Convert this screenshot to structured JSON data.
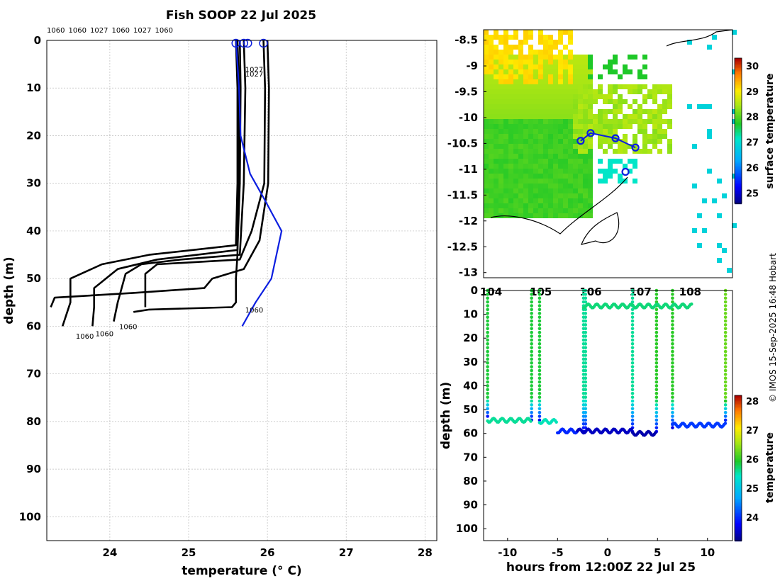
{
  "title": "Fish SOOP 22 Jul 2025",
  "credit": "© IMOS 15-Sep-2025 16:48 Hobart",
  "colors": {
    "mean_profile": "#0b1ee0",
    "profiles": "#000000",
    "grid": "#bcbcbc"
  },
  "chart_data": [
    {
      "type": "line",
      "name": "temperature-depth-profiles",
      "xlabel": "temperature (° C)",
      "ylabel": "depth (m)",
      "xlim": [
        23.2,
        28.15
      ],
      "ylim": [
        0,
        105
      ],
      "y_inverted": true,
      "xticks": [
        24,
        25,
        26,
        27,
        28
      ],
      "yticks": [
        0,
        10,
        20,
        30,
        40,
        50,
        60,
        70,
        80,
        90,
        100
      ],
      "top_labels": [
        "1060",
        "1060",
        "1027",
        "1060",
        "1027",
        "1060"
      ],
      "profile_labels": [
        {
          "text": "1027",
          "t": 25.7,
          "d": 6
        },
        {
          "text": "1027",
          "t": 25.7,
          "d": 7
        },
        {
          "text": "1060",
          "t": 25.7,
          "d": 56.5
        },
        {
          "text": "1060",
          "t": 24.1,
          "d": 60
        },
        {
          "text": "1060",
          "t": 23.8,
          "d": 61.5
        },
        {
          "text": "1060",
          "t": 23.55,
          "d": 62
        }
      ],
      "surface_markers": [
        25.6,
        25.7,
        25.75,
        25.95
      ],
      "series": [
        {
          "name": "profile-1",
          "color": "#000000",
          "points": [
            [
              25.6,
              0
            ],
            [
              25.62,
              10
            ],
            [
              25.62,
              30
            ],
            [
              25.6,
              43
            ],
            [
              24.5,
              45
            ],
            [
              23.9,
              47
            ],
            [
              23.5,
              50
            ],
            [
              23.5,
              55
            ],
            [
              23.4,
              60
            ]
          ]
        },
        {
          "name": "profile-2",
          "color": "#000000",
          "points": [
            [
              25.65,
              0
            ],
            [
              25.66,
              10
            ],
            [
              25.65,
              30
            ],
            [
              25.62,
              44
            ],
            [
              24.6,
              46
            ],
            [
              24.1,
              48
            ],
            [
              23.8,
              52
            ],
            [
              23.8,
              56
            ],
            [
              23.78,
              60
            ]
          ]
        },
        {
          "name": "profile-3",
          "color": "#000000",
          "points": [
            [
              25.7,
              0
            ],
            [
              25.72,
              10
            ],
            [
              25.7,
              30
            ],
            [
              25.65,
              45
            ],
            [
              24.9,
              46
            ],
            [
              24.4,
              47
            ],
            [
              24.2,
              49
            ],
            [
              24.1,
              55
            ],
            [
              24.05,
              59
            ]
          ]
        },
        {
          "name": "profile-4",
          "color": "#000000",
          "points": [
            [
              25.95,
              0
            ],
            [
              25.97,
              10
            ],
            [
              25.96,
              30
            ],
            [
              25.8,
              40
            ],
            [
              25.65,
              46
            ],
            [
              24.6,
              47
            ],
            [
              24.45,
              49
            ],
            [
              24.45,
              56
            ]
          ]
        },
        {
          "name": "profile-5",
          "color": "#000000",
          "points": [
            [
              26.0,
              0
            ],
            [
              26.02,
              10
            ],
            [
              26.01,
              30
            ],
            [
              25.9,
              42
            ],
            [
              25.7,
              48
            ],
            [
              25.3,
              50
            ],
            [
              25.2,
              52
            ],
            [
              24.3,
              53
            ],
            [
              23.3,
              54
            ],
            [
              23.25,
              56
            ]
          ]
        },
        {
          "name": "profile-6",
          "color": "#000000",
          "points": [
            [
              25.62,
              0
            ],
            [
              25.64,
              10
            ],
            [
              25.63,
              30
            ],
            [
              25.62,
              45
            ],
            [
              25.6,
              50
            ],
            [
              25.6,
              55
            ],
            [
              25.55,
              56
            ],
            [
              24.5,
              56.5
            ],
            [
              24.3,
              57
            ]
          ]
        },
        {
          "name": "mean",
          "color": "#0b1ee0",
          "points": [
            [
              25.6,
              0
            ],
            [
              25.62,
              5
            ],
            [
              25.64,
              10
            ],
            [
              25.66,
              20
            ],
            [
              25.78,
              28
            ],
            [
              25.95,
              33
            ],
            [
              26.18,
              40
            ],
            [
              26.05,
              50
            ],
            [
              25.85,
              55
            ],
            [
              25.68,
              60
            ]
          ]
        }
      ]
    },
    {
      "type": "heatmap",
      "name": "surface-temperature-map",
      "colorbar_label": "surface temperature",
      "colorbar_ticks": [
        25,
        26,
        27,
        28,
        29,
        30
      ],
      "colorbar_range": [
        24.6,
        30.3
      ],
      "xticks_label": [
        "104",
        "105",
        "106",
        "107",
        "108"
      ],
      "xlim": [
        103.85,
        108.85
      ],
      "ylim": [
        -13.1,
        -8.3
      ],
      "yticks": [
        "-8.5",
        "-9",
        "-9.5",
        "-10",
        "-10.5",
        "-11",
        "-11.5",
        "-12",
        "-12.5",
        "-13"
      ],
      "track": [
        [
          105.8,
          -10.45
        ],
        [
          106.0,
          -10.3
        ],
        [
          106.5,
          -10.4
        ],
        [
          106.9,
          -10.58
        ]
      ],
      "track_markers": [
        [
          105.8,
          -10.45
        ],
        [
          106.0,
          -10.3
        ],
        [
          106.5,
          -10.4
        ],
        [
          106.9,
          -10.58
        ],
        [
          106.7,
          -11.05
        ]
      ]
    },
    {
      "type": "scatter",
      "name": "depth-time-section",
      "xlabel": "hours from 12:00Z 22 Jul 25",
      "ylabel": "depth (m)",
      "xlim": [
        -12.4,
        12.5
      ],
      "ylim": [
        0,
        105
      ],
      "xticks": [
        -10,
        -5,
        0,
        5,
        10
      ],
      "yticks": [
        0,
        10,
        20,
        30,
        40,
        50,
        60,
        70,
        80,
        90,
        100
      ],
      "colorbar_label": "temperature",
      "colorbar_ticks": [
        24,
        25,
        26,
        27,
        28
      ],
      "colorbar_range": [
        23.2,
        28.2
      ],
      "casts": [
        {
          "t": -12.0,
          "bottom": 54,
          "temp_top": 25.9
        },
        {
          "t": -7.6,
          "bottom": 55,
          "temp_top": 25.9
        },
        {
          "t": -6.8,
          "bottom": 55,
          "temp_top": 25.9
        },
        {
          "t": -2.4,
          "bottom": 60,
          "temp_top": 25.6
        },
        {
          "t": -2.2,
          "bottom": 60,
          "temp_top": 25.6
        },
        {
          "t": 2.5,
          "bottom": 60,
          "temp_top": 25.6
        },
        {
          "t": 4.9,
          "bottom": 60,
          "temp_top": 26.0
        },
        {
          "t": 6.5,
          "bottom": 58,
          "temp_top": 26.0
        },
        {
          "t": 11.8,
          "bottom": 56,
          "temp_top": 26.3
        }
      ],
      "tows": [
        {
          "t0": -12.0,
          "t1": -7.6,
          "depth": 54.5,
          "temp": 25.6
        },
        {
          "t0": -6.8,
          "t1": -5.0,
          "depth": 55,
          "temp": 25.5
        },
        {
          "t0": -5.0,
          "t1": -3.0,
          "depth": 59,
          "temp": 24.0
        },
        {
          "t0": -3.0,
          "t1": 2.5,
          "depth": 59,
          "temp": 23.5
        },
        {
          "t0": 2.5,
          "t1": 4.9,
          "depth": 60,
          "temp": 23.4
        },
        {
          "t0": 6.5,
          "t1": 11.8,
          "depth": 56.5,
          "temp": 24.1
        },
        {
          "t0": -2.4,
          "t1": 8.5,
          "depth": 6.5,
          "temp": 25.7
        }
      ]
    }
  ]
}
